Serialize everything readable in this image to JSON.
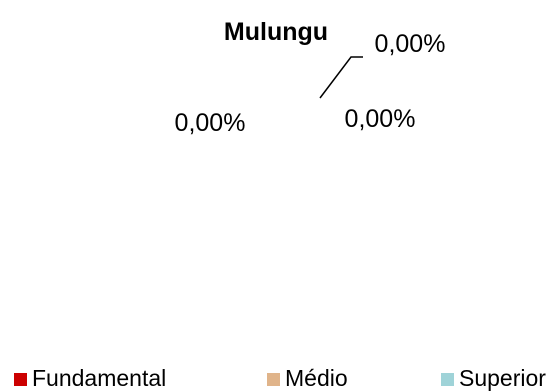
{
  "chart_data": {
    "type": "pie",
    "title": "Mulungu",
    "categories": [
      "Fundamental",
      "Médio",
      "Superior"
    ],
    "values": [
      0,
      0,
      0
    ],
    "data_labels": [
      "0,00%",
      "0,00%",
      "0,00%"
    ],
    "colors": [
      "#cc0000",
      "#e0b48a",
      "#9fd3d8"
    ],
    "legend_position": "bottom",
    "grid": false
  }
}
